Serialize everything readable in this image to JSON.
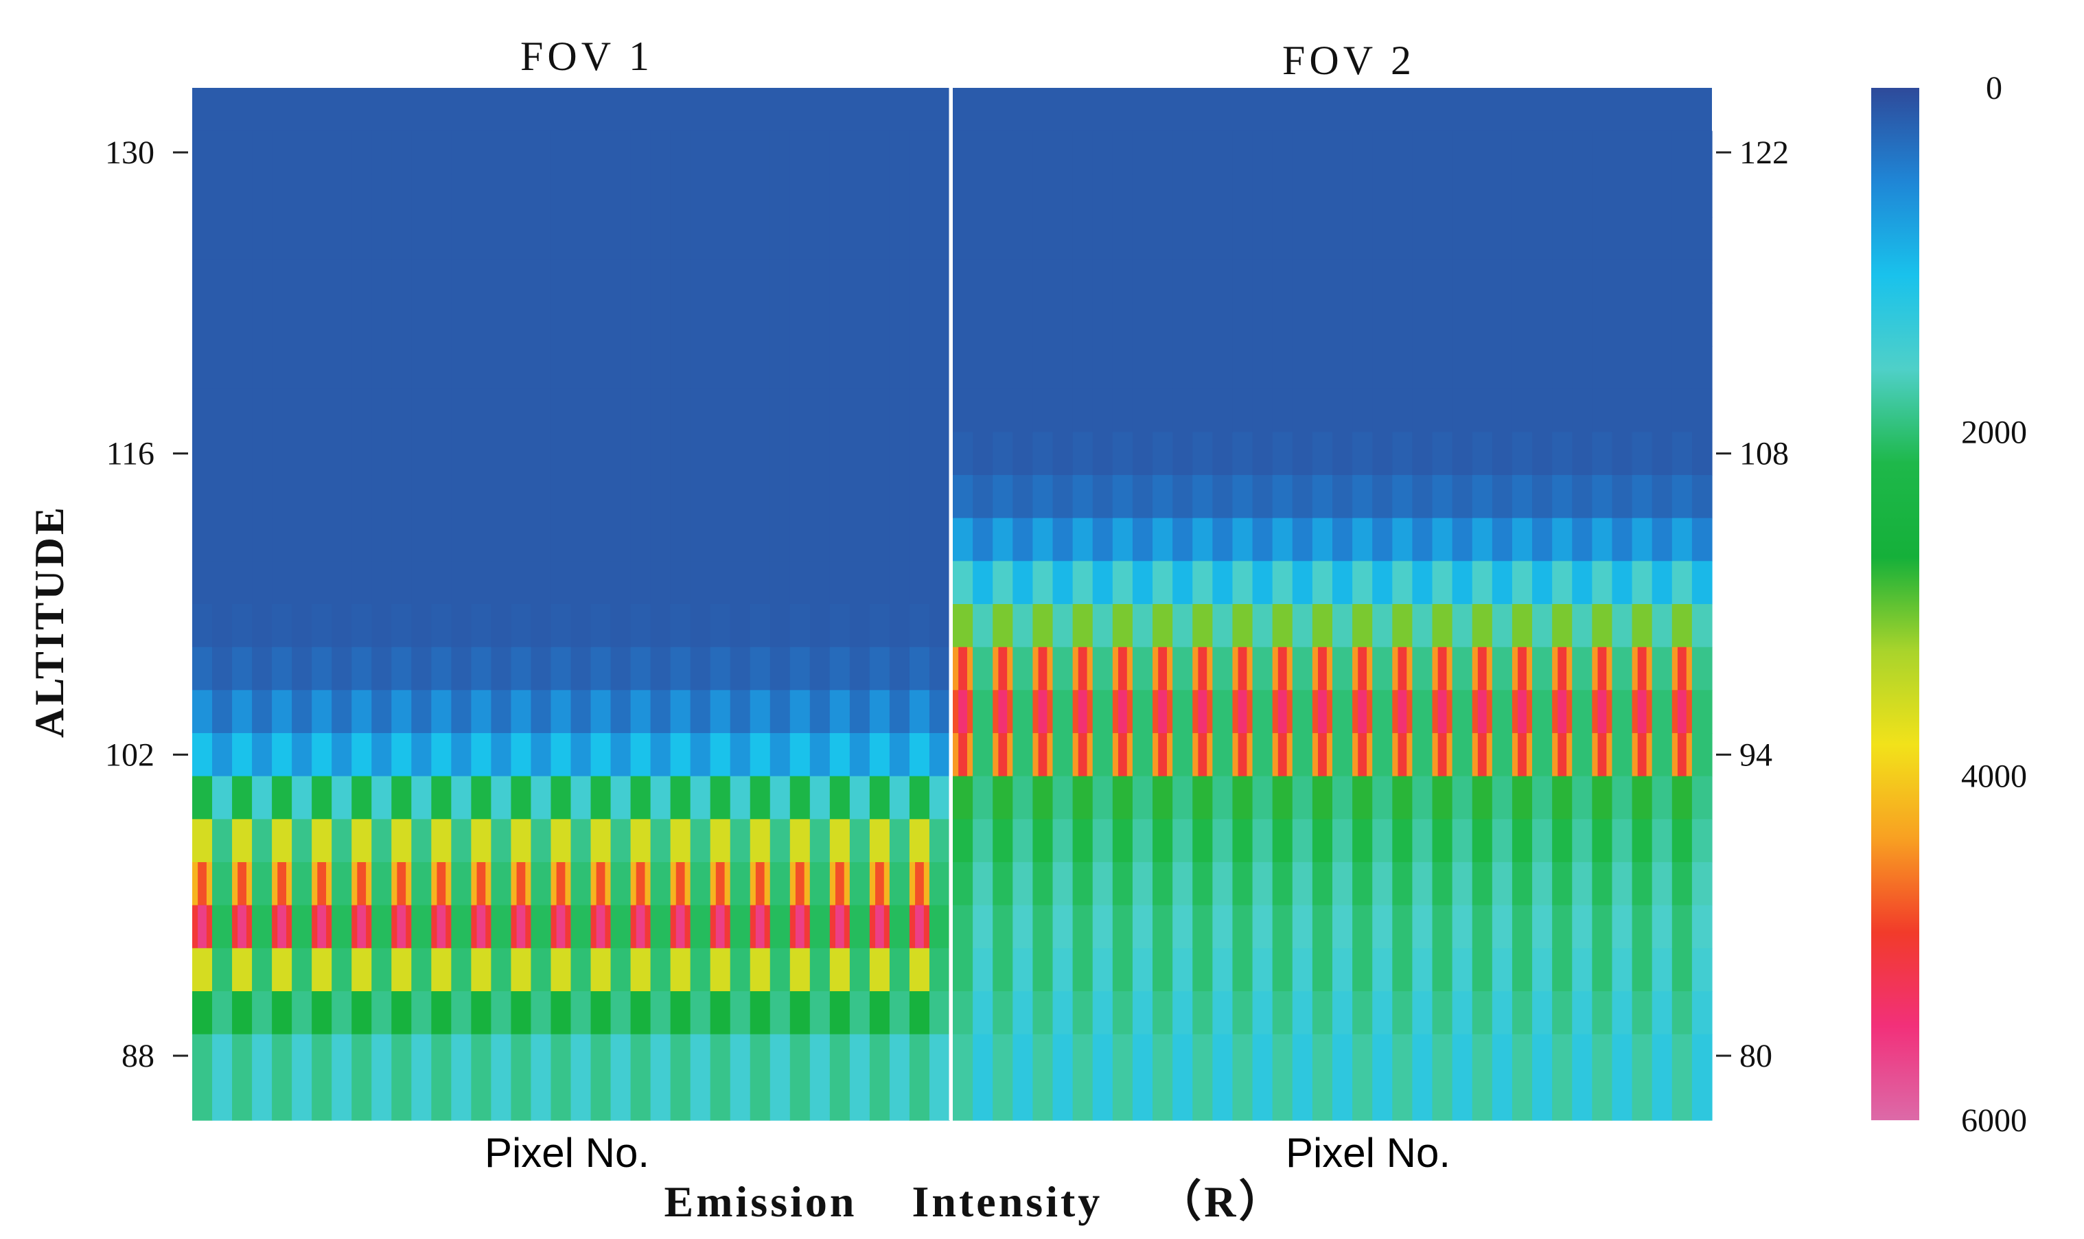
{
  "chart_data": {
    "type": "heatmap",
    "colorbar": {
      "ticks": [
        0,
        2000,
        4000,
        6000
      ],
      "tick_labels": [
        "0",
        "2000",
        "4000",
        "6000"
      ],
      "range": [
        0,
        6000
      ],
      "colors": [
        "#2e4a9a",
        "#1f86d6",
        "#19c2ec",
        "#4fd0c8",
        "#1eb84a",
        "#15b03a",
        "#a9d42b",
        "#f2e21a",
        "#f8a022",
        "#f23b2a",
        "#f2307a",
        "#dc6aa8"
      ],
      "label": "Emission Intensity (R)"
    },
    "ylabel": "ALTITUDE",
    "caption": "Emission    Intensity    （R）",
    "panels": [
      {
        "title": "FOV  1",
        "xlabel": "Pixel No.",
        "y_axis_side": "left",
        "ylim": [
          85,
          133
        ],
        "yticks": [
          88,
          102,
          116,
          130
        ],
        "ytick_labels": [
          "88",
          "102",
          "116",
          "130"
        ],
        "n_pixels": 19,
        "levels": [
          130,
          128,
          126,
          124,
          122,
          120,
          118,
          116,
          114,
          112,
          110,
          108,
          106,
          104,
          102,
          100,
          98,
          96,
          94,
          92,
          90,
          88
        ],
        "peak_profile": [
          150,
          150,
          150,
          150,
          150,
          150,
          150,
          150,
          150,
          150,
          150,
          180,
          300,
          650,
          1100,
          2300,
          3600,
          4200,
          5000,
          3600,
          2600,
          1900
        ],
        "valley_profile": [
          150,
          150,
          150,
          150,
          150,
          150,
          150,
          150,
          150,
          150,
          150,
          150,
          200,
          350,
          700,
          1500,
          1900,
          2000,
          2100,
          2000,
          1900,
          1500
        ]
      },
      {
        "title": "FOV  2",
        "xlabel": "Pixel No.",
        "y_axis_side": "right",
        "ylim": [
          77,
          125
        ],
        "yticks": [
          80,
          94,
          108,
          122
        ],
        "ytick_labels": [
          "80",
          "94",
          "108",
          "122"
        ],
        "n_pixels": 19,
        "levels": [
          122,
          120,
          118,
          116,
          114,
          112,
          110,
          108,
          106,
          104,
          102,
          100,
          98,
          96,
          94,
          92,
          90,
          88,
          86,
          84,
          82,
          80
        ],
        "peak_profile": [
          150,
          150,
          150,
          150,
          150,
          150,
          150,
          200,
          350,
          800,
          1600,
          3100,
          4400,
          4800,
          4400,
          2800,
          2200,
          2100,
          2000,
          2000,
          1900,
          1800
        ],
        "valley_profile": [
          150,
          150,
          150,
          150,
          150,
          150,
          150,
          150,
          250,
          500,
          1000,
          1700,
          1900,
          2000,
          2000,
          1900,
          1800,
          1700,
          1600,
          1500,
          1400,
          1300
        ]
      }
    ]
  }
}
